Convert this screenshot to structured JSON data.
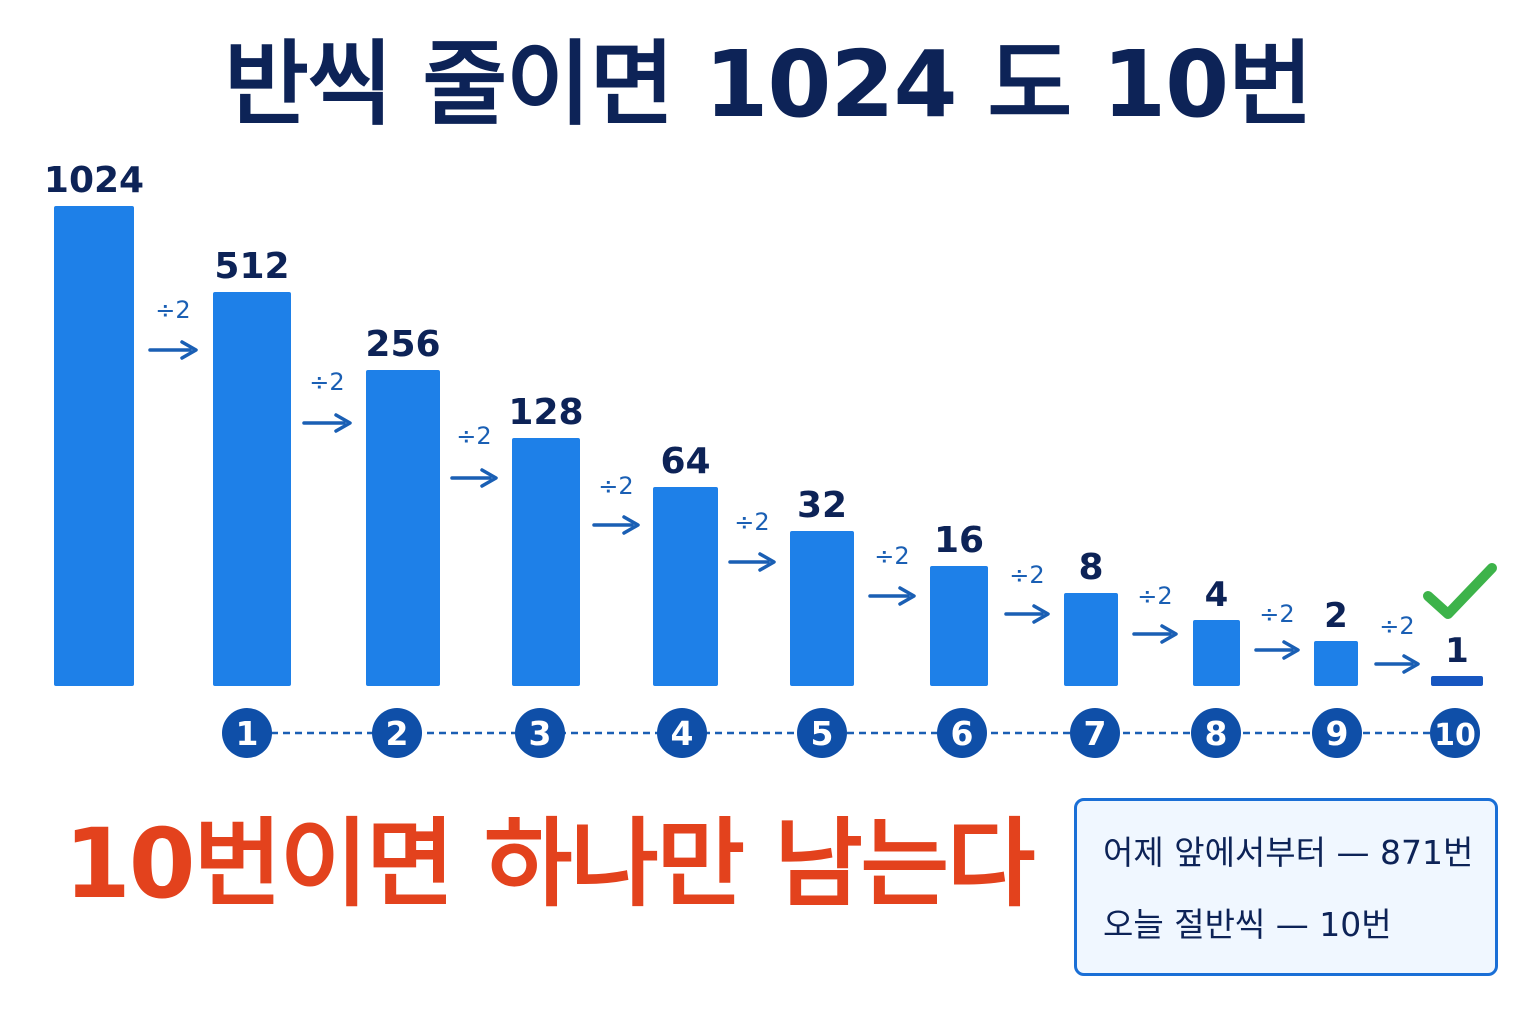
{
  "title": "반씩 줄이면 1024 도 10번",
  "chart_data": {
    "type": "bar",
    "categories": [
      "",
      "1",
      "2",
      "3",
      "4",
      "5",
      "6",
      "7",
      "8",
      "9",
      "10"
    ],
    "values": [
      1024,
      512,
      256,
      128,
      64,
      32,
      16,
      8,
      4,
      2,
      1
    ],
    "value_labels": [
      "1024",
      "512",
      "256",
      "128",
      "64",
      "32",
      "16",
      "8",
      "4",
      "2",
      "1"
    ],
    "operation_label": "÷2",
    "step_labels": [
      "1",
      "2",
      "3",
      "4",
      "5",
      "6",
      "7",
      "8",
      "9",
      "10"
    ],
    "title": "반씩 줄이면 1024 도 10번",
    "xlabel": "",
    "ylabel": "",
    "grid": false,
    "legend": "none",
    "colors": {
      "bar": "#1e80e8",
      "last_bar": "#1756c0",
      "value_text": "#0d2357",
      "arrow": "#1a5fb4",
      "step_circle": "#0f4fa8",
      "step_line": "#1a5fb4",
      "check": "#3db34a"
    }
  },
  "conclusion": "10번이면 하나만 남는다",
  "comparison": {
    "rows": [
      "어제 앞에서부터 — 871번",
      "오늘 절반씩  — 10번"
    ]
  },
  "colors": {
    "title": "#0d2357",
    "conclusion": "#e3421d",
    "box_border": "#1a6fd6",
    "box_background": "#f0f7ff"
  }
}
